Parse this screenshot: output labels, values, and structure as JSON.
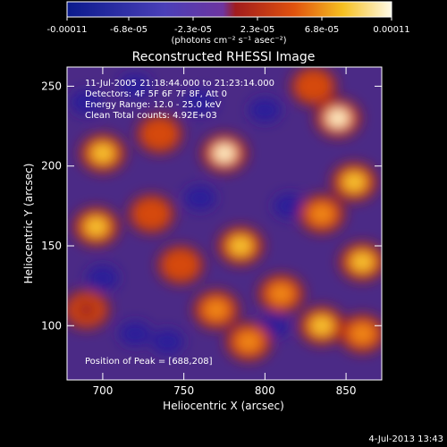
{
  "chart_data": {
    "type": "heatmap",
    "title": "Reconstructed RHESSI Image",
    "xlabel": "Heliocentric X (arcsec)",
    "ylabel": "Heliocentric Y (arcsec)",
    "xlim": [
      678,
      872
    ],
    "ylim": [
      66,
      262
    ],
    "x_ticks": [
      "700",
      "750",
      "800",
      "850"
    ],
    "y_ticks": [
      "100",
      "150",
      "200",
      "250"
    ],
    "x_tick_values": [
      700,
      750,
      800,
      850
    ],
    "y_tick_values": [
      100,
      150,
      200,
      250
    ],
    "colorbar": {
      "ticks": [
        "-0.00011",
        "-6.8e-05",
        "-2.3e-05",
        "2.3e-05",
        "6.8e-05",
        "0.00011"
      ],
      "unit_text": "(photons cm⁻² s⁻¹ asec⁻²)",
      "colors": [
        "#0a1a8c",
        "#4a3fb8",
        "#6d35a0",
        "#a11c1c",
        "#e0520e",
        "#f6c020",
        "#fffbe8"
      ]
    },
    "annotations": [
      "11-Jul-2005 21:18:44.000 to 21:23:14.000",
      "Detectors: 4F 5F 6F 7F 8F, Att 0",
      "Energy Range: 12.0 - 25.0 keV",
      "Clean     Total counts: 4.92E+03"
    ],
    "peak_label": "Position of Peak = [688,208]",
    "peak": [
      688,
      208
    ],
    "background_level": -0.8,
    "bright_sources": [
      {
        "x": 775,
        "y": 208,
        "level": 1.0
      },
      {
        "x": 700,
        "y": 208,
        "level": 0.9
      },
      {
        "x": 696,
        "y": 162,
        "level": 0.9
      },
      {
        "x": 730,
        "y": 170,
        "level": 0.7
      },
      {
        "x": 748,
        "y": 138,
        "level": 0.7
      },
      {
        "x": 785,
        "y": 150,
        "level": 0.9
      },
      {
        "x": 770,
        "y": 110,
        "level": 0.8
      },
      {
        "x": 790,
        "y": 90,
        "level": 0.8
      },
      {
        "x": 810,
        "y": 120,
        "level": 0.8
      },
      {
        "x": 845,
        "y": 230,
        "level": 1.0
      },
      {
        "x": 855,
        "y": 190,
        "level": 0.9
      },
      {
        "x": 860,
        "y": 140,
        "level": 0.9
      },
      {
        "x": 835,
        "y": 170,
        "level": 0.8
      },
      {
        "x": 835,
        "y": 100,
        "level": 0.9
      },
      {
        "x": 860,
        "y": 95,
        "level": 0.8
      },
      {
        "x": 735,
        "y": 220,
        "level": 0.6
      },
      {
        "x": 690,
        "y": 110,
        "level": 0.5
      },
      {
        "x": 830,
        "y": 250,
        "level": 0.7
      }
    ]
  },
  "footer": {
    "timestamp": "4-Jul-2013 13:43"
  }
}
